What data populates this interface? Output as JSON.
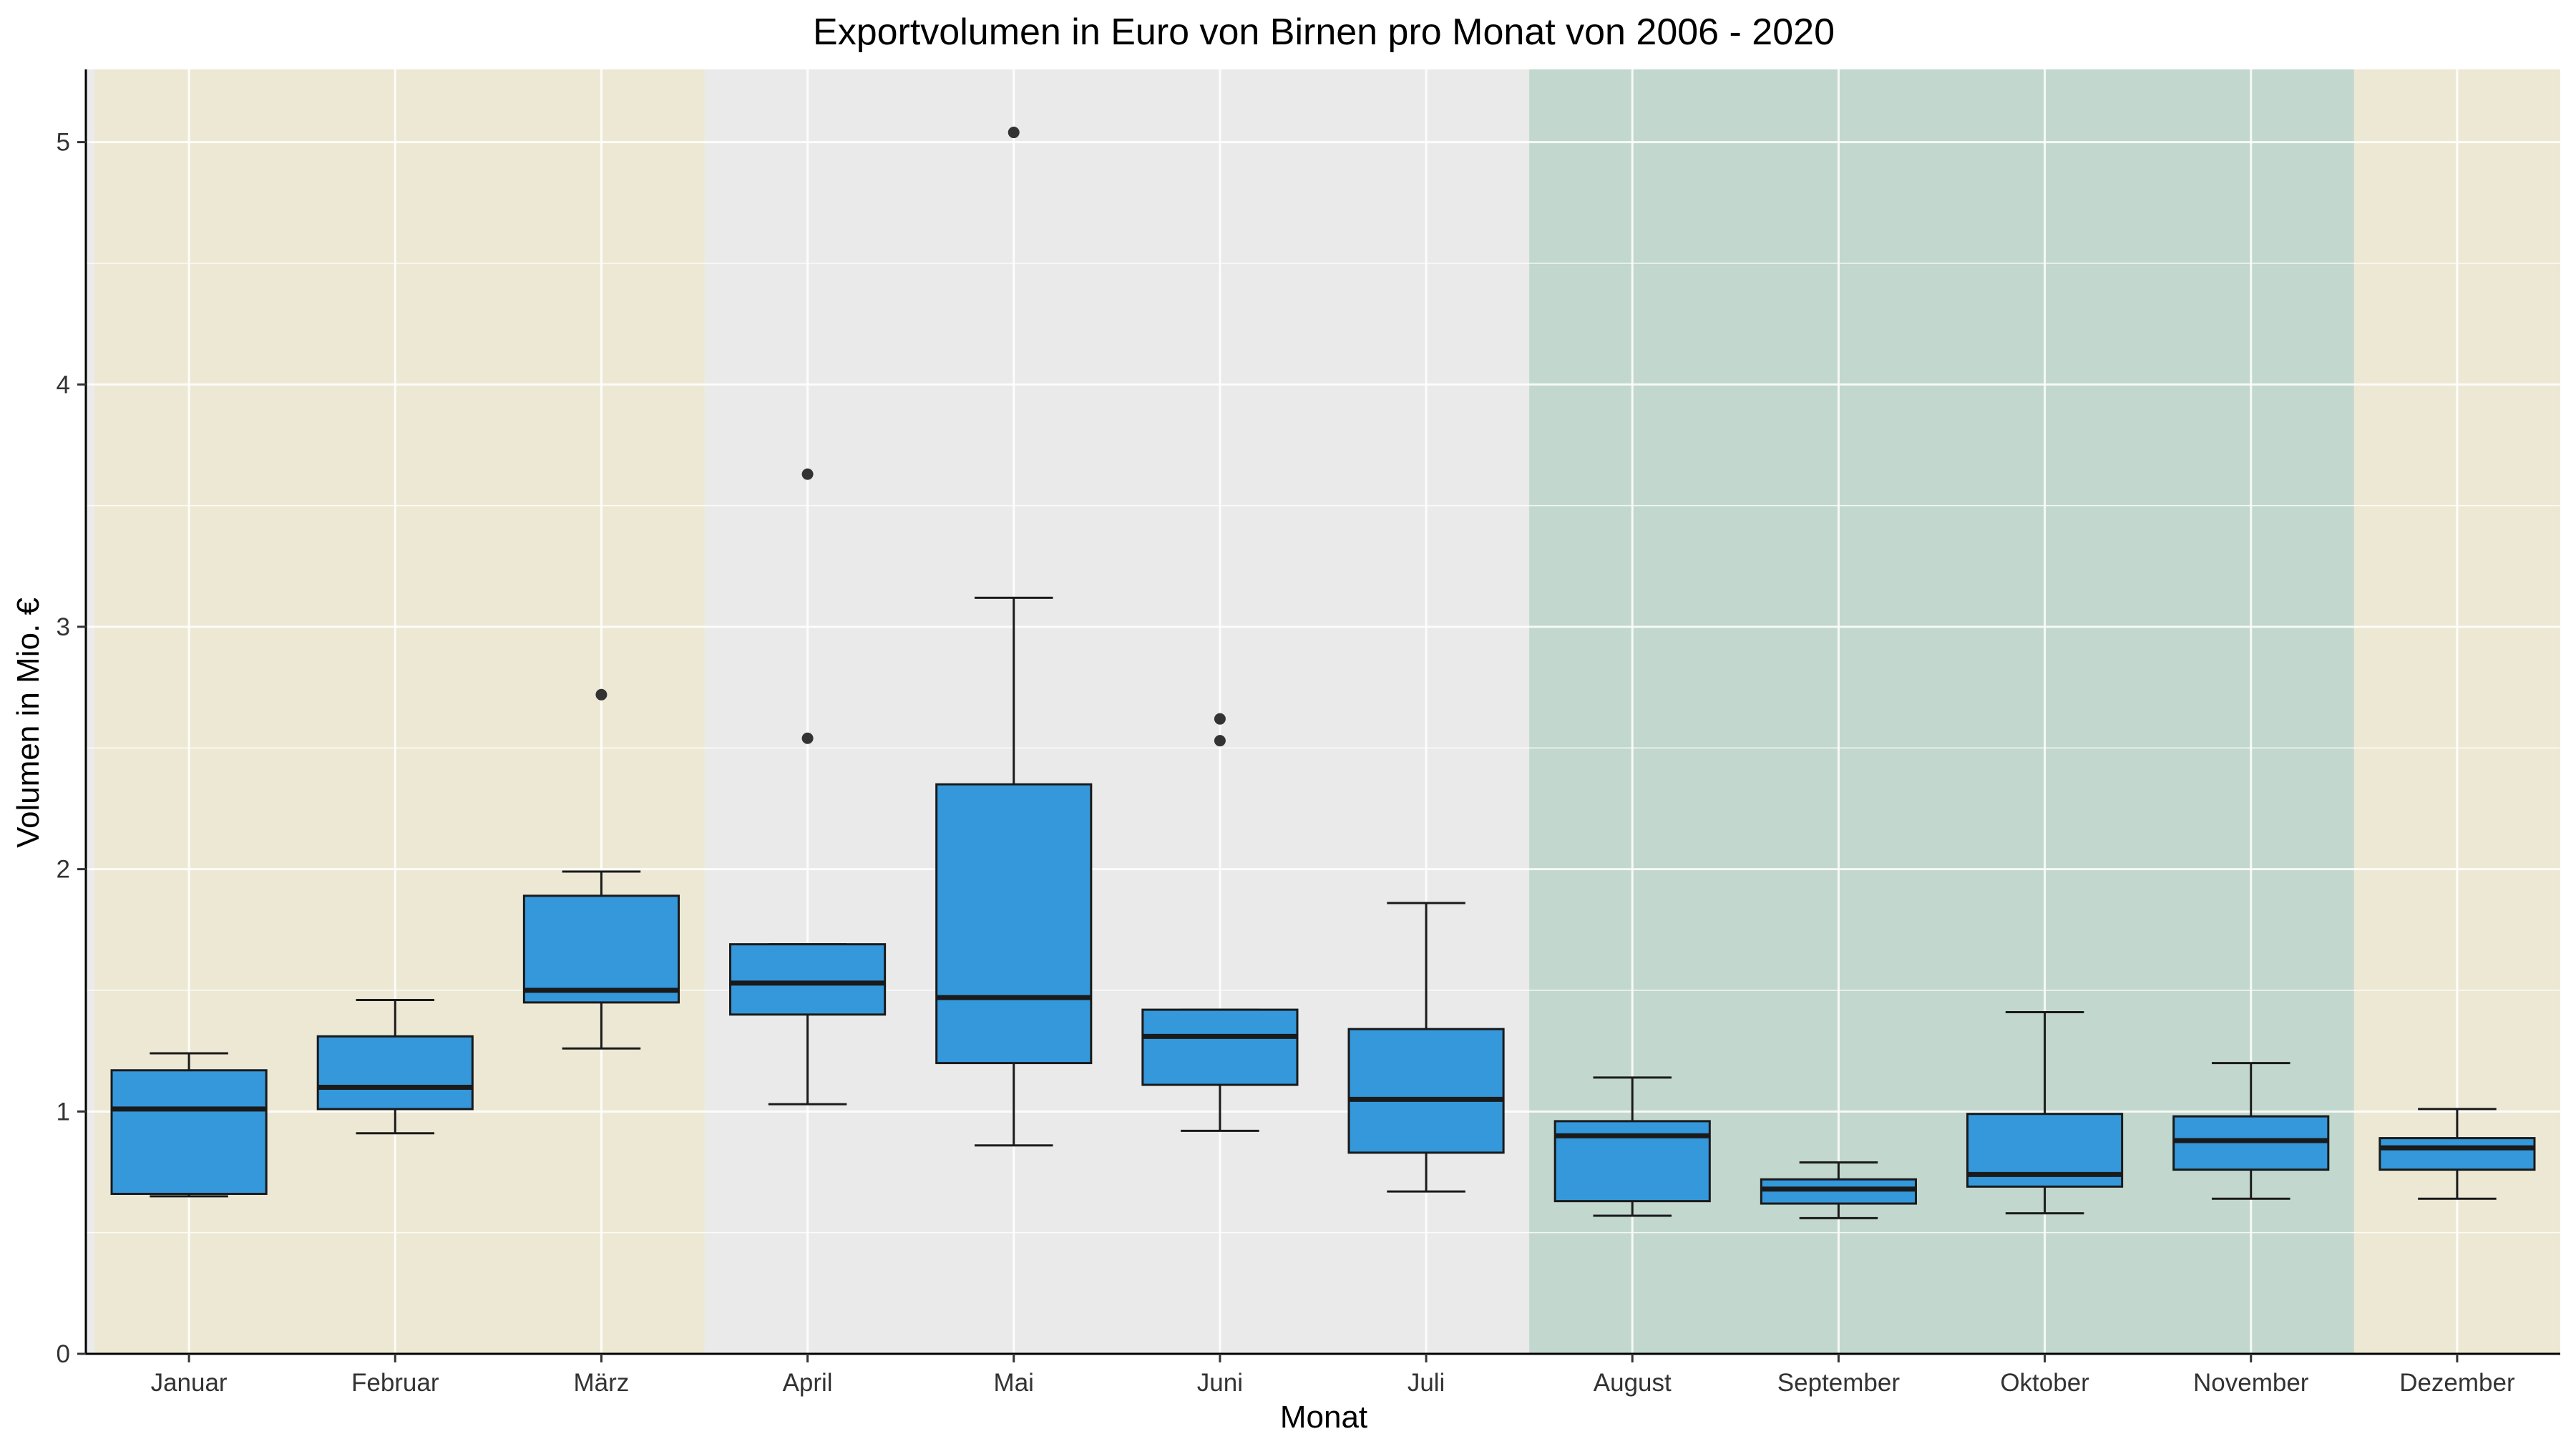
{
  "chart_data": {
    "type": "boxplot",
    "title": "Exportvolumen in Euro von Birnen pro Monat von 2006 - 2020",
    "xlabel": "Monat",
    "ylabel": "Volumen in Mio. €",
    "ylim": [
      0,
      5.3
    ],
    "y_ticks": [
      0,
      1,
      2,
      3,
      4,
      5
    ],
    "y_tick_labels": [
      "0",
      "1",
      "2",
      "3",
      "4",
      "5"
    ],
    "grid": true,
    "colors": {
      "box_fill": "#3498db",
      "box_stroke": "#1a1a1a",
      "panel_bg": "#ebebeb",
      "grid": "#ffffff",
      "outlier": "#333333",
      "band_winter": "#ede8d4",
      "band_spring_summer": "#eaeaea",
      "band_autumn": "#c2d7cd"
    },
    "season_bands": [
      {
        "from": "Januar",
        "to": "März",
        "color": "#ede8d4"
      },
      {
        "from": "April",
        "to": "Juli",
        "color": "#eaeaea"
      },
      {
        "from": "August",
        "to": "November",
        "color": "#c2d7cd"
      },
      {
        "from": "Dezember",
        "to": "Dezember",
        "color": "#ede8d4"
      }
    ],
    "categories": [
      "Januar",
      "Februar",
      "März",
      "April",
      "Mai",
      "Juni",
      "Juli",
      "August",
      "September",
      "Oktober",
      "November",
      "Dezember"
    ],
    "boxes": [
      {
        "category": "Januar",
        "min": 0.65,
        "q1": 0.66,
        "median": 1.01,
        "q3": 1.17,
        "max": 1.24,
        "outliers": []
      },
      {
        "category": "Februar",
        "min": 0.91,
        "q1": 1.01,
        "median": 1.1,
        "q3": 1.31,
        "max": 1.46,
        "outliers": []
      },
      {
        "category": "März",
        "min": 1.26,
        "q1": 1.45,
        "median": 1.5,
        "q3": 1.89,
        "max": 1.99,
        "outliers": [
          2.72
        ]
      },
      {
        "category": "April",
        "min": 1.03,
        "q1": 1.4,
        "median": 1.53,
        "q3": 1.69,
        "max": 1.69,
        "outliers": [
          2.54,
          3.63
        ]
      },
      {
        "category": "Mai",
        "min": 0.86,
        "q1": 1.2,
        "median": 1.47,
        "q3": 2.35,
        "max": 3.12,
        "outliers": [
          5.04
        ]
      },
      {
        "category": "Juni",
        "min": 0.92,
        "q1": 1.11,
        "median": 1.31,
        "q3": 1.42,
        "max": 1.42,
        "outliers": [
          2.53,
          2.62
        ]
      },
      {
        "category": "Juli",
        "min": 0.67,
        "q1": 0.83,
        "median": 1.05,
        "q3": 1.34,
        "max": 1.86,
        "outliers": []
      },
      {
        "category": "August",
        "min": 0.57,
        "q1": 0.63,
        "median": 0.9,
        "q3": 0.96,
        "max": 1.14,
        "outliers": []
      },
      {
        "category": "September",
        "min": 0.56,
        "q1": 0.62,
        "median": 0.68,
        "q3": 0.72,
        "max": 0.79,
        "outliers": []
      },
      {
        "category": "Oktober",
        "min": 0.58,
        "q1": 0.69,
        "median": 0.74,
        "q3": 0.99,
        "max": 1.41,
        "outliers": []
      },
      {
        "category": "November",
        "min": 0.64,
        "q1": 0.76,
        "median": 0.88,
        "q3": 0.98,
        "max": 1.2,
        "outliers": []
      },
      {
        "category": "Dezember",
        "min": 0.64,
        "q1": 0.76,
        "median": 0.85,
        "q3": 0.89,
        "max": 1.01,
        "outliers": []
      }
    ]
  }
}
